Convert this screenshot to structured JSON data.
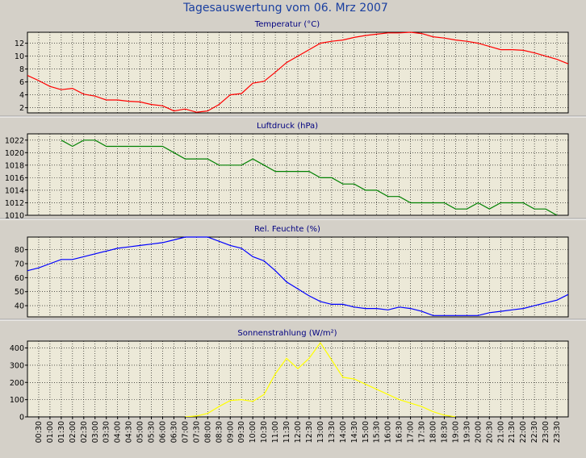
{
  "window_title": "Tagesauswertung vom 06. Mrz 2007",
  "colors": {
    "background": "#d4d0c8",
    "plot_background": "#ece9d8",
    "grid": "#000000",
    "temperature": "#ff0000",
    "pressure": "#008000",
    "humidity": "#0000ff",
    "radiation": "#ffff00"
  },
  "chart_data": [
    {
      "type": "line",
      "title": "Temperatur (°C)",
      "yticks": [
        "2",
        "4",
        "6",
        "8",
        "10",
        "12"
      ],
      "ylim": [
        1.2,
        13.7
      ],
      "grid": true,
      "series": [
        {
          "color": "#ff0000",
          "x": [
            0,
            0.5,
            1,
            1.5,
            2,
            2.5,
            3,
            3.5,
            4,
            4.5,
            5,
            5.5,
            6,
            6.5,
            7,
            7.5,
            8,
            8.5,
            9,
            9.5,
            10,
            10.5,
            11,
            11.5,
            12,
            12.5,
            13,
            13.5,
            14,
            14.5,
            15,
            15.5,
            16,
            16.5,
            17,
            17.5,
            18,
            18.5,
            19,
            19.5,
            20,
            20.5,
            21,
            21.5,
            22,
            22.5,
            23,
            23.5,
            24
          ],
          "values": [
            7.0,
            6.2,
            5.3,
            4.8,
            5.0,
            4.1,
            3.8,
            3.2,
            3.2,
            3.0,
            2.9,
            2.5,
            2.3,
            1.5,
            1.8,
            1.3,
            1.5,
            2.5,
            4.0,
            4.2,
            5.8,
            6.1,
            7.5,
            9.0,
            10.0,
            11.0,
            12.0,
            12.3,
            12.5,
            12.9,
            13.2,
            13.4,
            13.6,
            13.6,
            13.7,
            13.5,
            13.0,
            12.8,
            12.5,
            12.3,
            12.0,
            11.5,
            11.0,
            11.0,
            10.9,
            10.5,
            10.0,
            9.5,
            8.8
          ]
        }
      ]
    },
    {
      "type": "line",
      "title": "Luftdruck (hPa)",
      "yticks": [
        "1010",
        "1012",
        "1014",
        "1016",
        "1018",
        "1020",
        "1022"
      ],
      "ylim": [
        1010,
        1023
      ],
      "grid": true,
      "series": [
        {
          "color": "#008000",
          "x": [
            1.5,
            2,
            2.5,
            3,
            3.5,
            4,
            4.5,
            5,
            5.5,
            6,
            6.5,
            7,
            7.5,
            8,
            8.5,
            9,
            9.5,
            10,
            10.5,
            11,
            11.5,
            12,
            12.5,
            13,
            13.5,
            14,
            14.5,
            15,
            15.5,
            16,
            16.5,
            17,
            17.5,
            18,
            18.5,
            19,
            19.5,
            20,
            20.5,
            21,
            21.5,
            22,
            22.5,
            23,
            23.5
          ],
          "values": [
            1022,
            1021,
            1022,
            1022,
            1021,
            1021,
            1021,
            1021,
            1021,
            1021,
            1020,
            1019,
            1019,
            1019,
            1018,
            1018,
            1018,
            1019,
            1018,
            1017,
            1017,
            1017,
            1017,
            1016,
            1016,
            1015,
            1015,
            1014,
            1014,
            1013,
            1013,
            1012,
            1012,
            1012,
            1012,
            1011,
            1011,
            1012,
            1011,
            1012,
            1012,
            1012,
            1011,
            1011,
            1010
          ]
        }
      ]
    },
    {
      "type": "line",
      "title": "Rel. Feuchte (%)",
      "yticks": [
        "40",
        "50",
        "60",
        "70",
        "80"
      ],
      "ylim": [
        32,
        89
      ],
      "grid": true,
      "series": [
        {
          "color": "#0000ff",
          "x": [
            0,
            0.5,
            1,
            1.5,
            2,
            2.5,
            3,
            3.5,
            4,
            4.5,
            5,
            5.5,
            6,
            6.5,
            7,
            7.5,
            8,
            8.5,
            9,
            9.5,
            10,
            10.5,
            11,
            11.5,
            12,
            12.5,
            13,
            13.5,
            14,
            14.5,
            15,
            15.5,
            16,
            16.5,
            17,
            17.5,
            18,
            18.5,
            19,
            19.5,
            20,
            20.5,
            21,
            21.5,
            22,
            22.5,
            23,
            23.5,
            24
          ],
          "values": [
            65,
            67,
            70,
            73,
            73,
            75,
            77,
            79,
            81,
            82,
            83,
            84,
            85,
            87,
            89,
            89,
            89,
            86,
            83,
            81,
            75,
            72,
            65,
            57,
            52,
            47,
            43,
            41,
            41,
            39,
            38,
            38,
            37,
            39,
            38,
            36,
            33,
            33,
            33,
            33,
            33,
            35,
            36,
            37,
            38,
            40,
            42,
            44,
            48
          ]
        }
      ]
    },
    {
      "type": "line",
      "title": "Sonnenstrahlung (W/m²)",
      "yticks": [
        "0",
        "100",
        "200",
        "300",
        "400"
      ],
      "ylim": [
        0,
        440
      ],
      "grid": true,
      "series": [
        {
          "color": "#ffff00",
          "x": [
            7,
            7.5,
            8,
            8.5,
            9,
            9.5,
            10,
            10.5,
            11,
            11.5,
            12,
            12.5,
            13,
            13.5,
            14,
            14.5,
            15,
            15.5,
            16,
            16.5,
            17,
            17.5,
            18,
            18.5,
            19
          ],
          "values": [
            0,
            5,
            20,
            60,
            95,
            100,
            90,
            130,
            250,
            340,
            280,
            340,
            430,
            330,
            230,
            220,
            190,
            160,
            130,
            100,
            80,
            60,
            30,
            10,
            0
          ]
        }
      ]
    }
  ],
  "x_axis": {
    "ticks": [
      "00:30",
      "01:00",
      "01:30",
      "02:00",
      "02:30",
      "03:00",
      "03:30",
      "04:00",
      "04:30",
      "05:00",
      "05:30",
      "06:00",
      "06:30",
      "07:00",
      "07:30",
      "08:00",
      "08:30",
      "09:00",
      "09:30",
      "10:00",
      "10:30",
      "11:00",
      "11:30",
      "12:00",
      "12:30",
      "13:00",
      "13:30",
      "14:00",
      "14:30",
      "15:00",
      "15:30",
      "16:00",
      "16:30",
      "17:00",
      "17:30",
      "18:00",
      "18:30",
      "19:00",
      "19:30",
      "20:00",
      "20:30",
      "21:00",
      "21:30",
      "22:00",
      "22:30",
      "23:00",
      "23:30"
    ],
    "tick_hours": [
      0.5,
      1,
      1.5,
      2,
      2.5,
      3,
      3.5,
      4,
      4.5,
      5,
      5.5,
      6,
      6.5,
      7,
      7.5,
      8,
      8.5,
      9,
      9.5,
      10,
      10.5,
      11,
      11.5,
      12,
      12.5,
      13,
      13.5,
      14,
      14.5,
      15,
      15.5,
      16,
      16.5,
      17,
      17.5,
      18,
      18.5,
      19,
      19.5,
      20,
      20.5,
      21,
      21.5,
      22,
      22.5,
      23,
      23.5
    ]
  }
}
